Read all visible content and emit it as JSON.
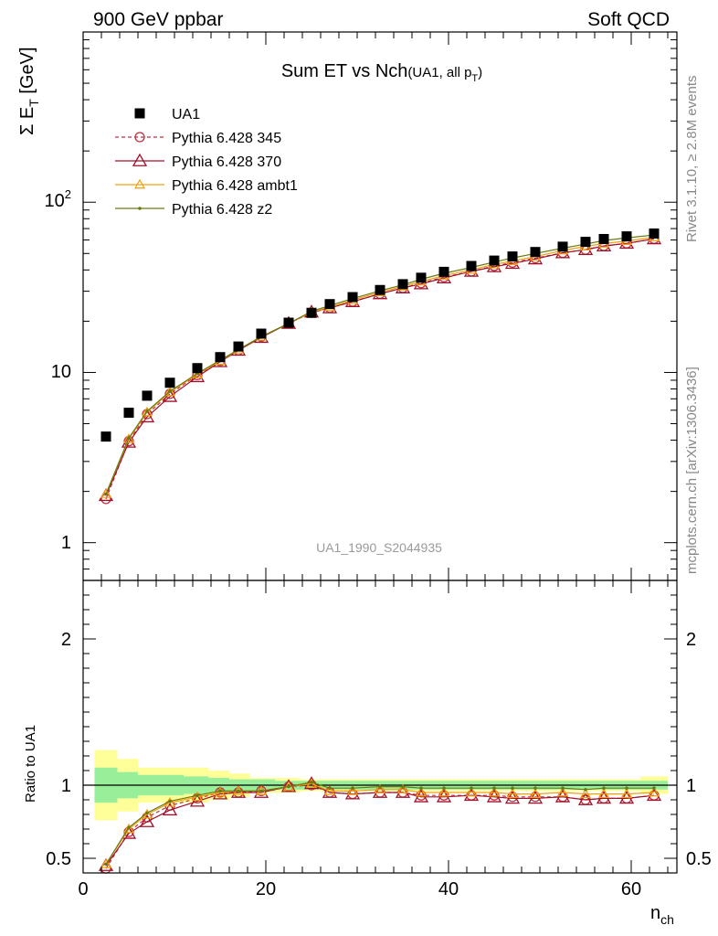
{
  "header": {
    "left": "900 GeV ppbar",
    "right": "Soft QCD"
  },
  "chart_data": {
    "type": "scatter",
    "title": "Sum ET vs Nch",
    "title_note": "(UA1, all p",
    "title_note_sub": "T",
    "title_note_end": ")",
    "analysis_id": "UA1_1990_S2044935",
    "side_labels": {
      "rivet": "Rivet 3.1.10, ≥ 2.8M events",
      "mcplots": "mcplots.cern.ch [arXiv:1306.3436]"
    },
    "ylabel": {
      "main": "Σ E",
      "sub": "T",
      "unit": " [GeV]"
    },
    "xlabel": {
      "main": "n",
      "sub": "ch"
    },
    "ratio_ylabel": "Ratio to UA1",
    "x_range": [
      0,
      65
    ],
    "y_range": [
      0.6,
      1000
    ],
    "y_scale": "log",
    "ratio_range": [
      0.4,
      2.4
    ],
    "x_ticks": [
      "0",
      "20",
      "40",
      "60"
    ],
    "x_tick_values": [
      0,
      20,
      40,
      60
    ],
    "y_tick_labels": {
      "one": "1",
      "ten": "10",
      "hundred_base": "10",
      "hundred_exp": "2"
    },
    "ratio_tick_labels": [
      "0.5",
      "1",
      "2"
    ],
    "ratio_tick_values": [
      0.5,
      1,
      2
    ],
    "legend_position": "top-left",
    "x": [
      2.5,
      5,
      7,
      9.5,
      12.5,
      15,
      17,
      19.5,
      22.5,
      25,
      27,
      29.5,
      32.5,
      35,
      37,
      39.5,
      42.5,
      45,
      47,
      49.5,
      52.5,
      55,
      57,
      59.5,
      62.5
    ],
    "data": {
      "name": "UA1",
      "color": "#000000",
      "values": [
        4.2,
        5.8,
        7.3,
        8.7,
        10.6,
        12.3,
        14.2,
        16.9,
        19.6,
        22.4,
        25.2,
        27.7,
        30.5,
        33.0,
        36.0,
        39.0,
        42.2,
        45.4,
        48.0,
        51.0,
        54.8,
        58.5,
        60.8,
        63.0,
        65.5
      ],
      "stat_band_rel": [
        0.12,
        0.09,
        0.07,
        0.07,
        0.06,
        0.05,
        0.04,
        0.04,
        0.03,
        0.03,
        0.03,
        0.03,
        0.03,
        0.03,
        0.03,
        0.03,
        0.03,
        0.03,
        0.03,
        0.03,
        0.03,
        0.03,
        0.03,
        0.03,
        0.03
      ],
      "total_band_rel": [
        0.24,
        0.18,
        0.12,
        0.12,
        0.12,
        0.1,
        0.08,
        0.05,
        0.05,
        0.04,
        0.04,
        0.04,
        0.04,
        0.04,
        0.04,
        0.04,
        0.04,
        0.04,
        0.04,
        0.04,
        0.04,
        0.04,
        0.04,
        0.04,
        0.06
      ]
    },
    "series": [
      {
        "name": "Pythia 6.428 345",
        "color": "#c03040",
        "marker": "circle",
        "dash": "4,3",
        "ratio": [
          0.43,
          0.68,
          0.78,
          0.86,
          0.91,
          0.95,
          0.95,
          0.96,
          0.99,
          1.0,
          0.95,
          0.94,
          0.95,
          0.95,
          0.93,
          0.93,
          0.93,
          0.93,
          0.92,
          0.92,
          0.92,
          0.9,
          0.91,
          0.91,
          0.93
        ]
      },
      {
        "name": "Pythia 6.428 370",
        "color": "#a0102a",
        "marker": "triangle",
        "dash": "",
        "ratio": [
          0.45,
          0.67,
          0.75,
          0.83,
          0.89,
          0.94,
          0.95,
          0.95,
          0.99,
          1.01,
          0.95,
          0.94,
          0.95,
          0.95,
          0.92,
          0.92,
          0.93,
          0.92,
          0.91,
          0.91,
          0.92,
          0.9,
          0.91,
          0.91,
          0.93
        ]
      },
      {
        "name": "Pythia 6.428 ambt1",
        "color": "#f0a010",
        "marker": "triangle-small",
        "dash": "",
        "ratio": [
          0.46,
          0.7,
          0.8,
          0.88,
          0.92,
          0.95,
          0.96,
          0.96,
          0.99,
          1.01,
          0.96,
          0.96,
          0.97,
          0.97,
          0.95,
          0.95,
          0.95,
          0.95,
          0.94,
          0.94,
          0.95,
          0.94,
          0.94,
          0.94,
          0.95
        ]
      },
      {
        "name": "Pythia 6.428 z2",
        "color": "#6a7a10",
        "marker": "dot",
        "dash": "",
        "ratio": [
          0.46,
          0.71,
          0.81,
          0.89,
          0.93,
          0.96,
          0.96,
          0.96,
          0.99,
          1.02,
          0.98,
          0.98,
          0.99,
          0.99,
          0.98,
          0.98,
          0.98,
          0.98,
          0.98,
          0.98,
          0.98,
          0.97,
          0.98,
          0.98,
          0.98
        ]
      }
    ]
  }
}
